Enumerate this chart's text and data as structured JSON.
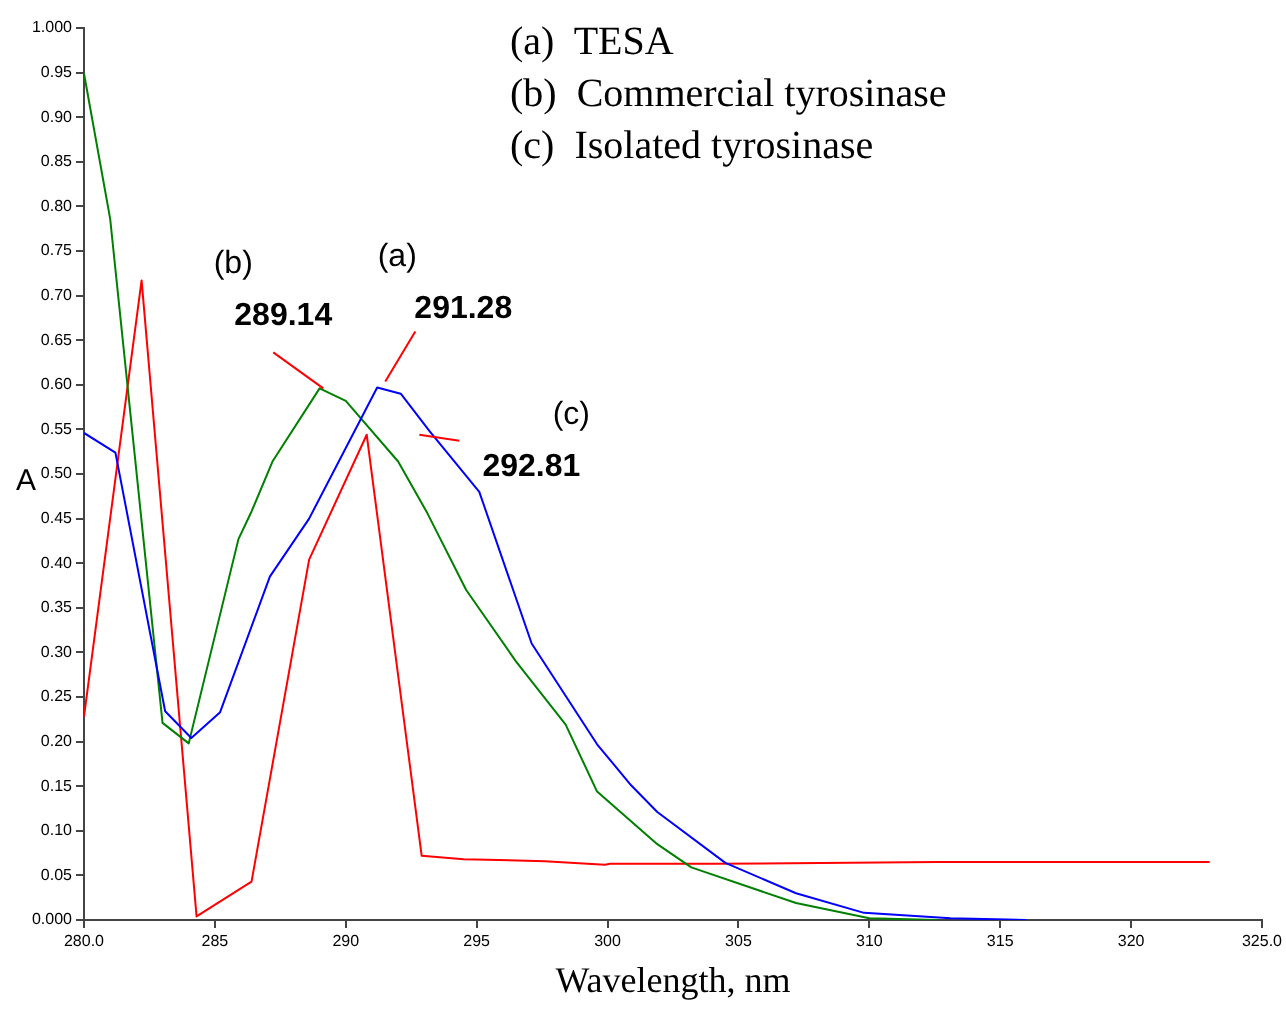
{
  "chart_data": {
    "type": "line",
    "xlabel": "Wavelength, nm",
    "ylabel": "A",
    "xlim": [
      280,
      325
    ],
    "ylim": [
      0,
      1
    ],
    "xticks": [
      {
        "value": 280,
        "label": "280.0"
      },
      285,
      290,
      295,
      300,
      305,
      310,
      315,
      320,
      {
        "value": 325,
        "label": "325.0"
      }
    ],
    "yticks": [
      {
        "value": 0,
        "label": "0.000"
      },
      0.05,
      {
        "value": 0.1,
        "label": "0.10"
      },
      0.15,
      {
        "value": 0.2,
        "label": "0.20"
      },
      0.25,
      {
        "value": 0.3,
        "label": "0.30"
      },
      0.35,
      {
        "value": 0.4,
        "label": "0.40"
      },
      0.45,
      {
        "value": 0.5,
        "label": "0.50"
      },
      0.55,
      {
        "value": 0.6,
        "label": "0.60"
      },
      0.65,
      {
        "value": 0.7,
        "label": "0.70"
      },
      0.75,
      {
        "value": 0.8,
        "label": "0.80"
      },
      0.85,
      {
        "value": 0.9,
        "label": "0.90"
      },
      0.95,
      {
        "value": 1,
        "label": "1.000"
      }
    ],
    "marker": "none",
    "line_style": "solid",
    "legend": false,
    "series": [
      {
        "color": "#0000ff",
        "x": [
          280,
          281.2,
          283.1,
          284.1,
          285.2,
          287.1,
          288.6,
          291.2,
          292.1,
          293.2,
          295.1,
          297.1,
          299.6,
          300.9,
          301.9,
          304.5,
          307.2,
          309.8,
          313.1,
          316
        ],
        "values": [
          0.546,
          0.524,
          0.234,
          0.204,
          0.233,
          0.385,
          0.45,
          0.597,
          0.59,
          0.548,
          0.48,
          0.31,
          0.197,
          0.151,
          0.121,
          0.064,
          0.03,
          0.008,
          0.002,
          0
        ]
      },
      {
        "color": "#008000",
        "x": [
          280,
          281,
          283,
          284,
          285.9,
          286.4,
          287.2,
          289,
          290,
          292,
          293.1,
          294.6,
          296.5,
          298.4,
          299.6,
          301.9,
          303.2,
          307.2,
          310,
          312.6
        ],
        "values": [
          0.949,
          0.786,
          0.221,
          0.198,
          0.427,
          0.458,
          0.514,
          0.596,
          0.582,
          0.514,
          0.457,
          0.37,
          0.29,
          0.219,
          0.144,
          0.085,
          0.059,
          0.019,
          0.002,
          0
        ]
      },
      {
        "color": "#ff0000",
        "x": [
          280,
          282.2,
          284.3,
          286.4,
          288.6,
          290.8,
          292.9,
          294.5,
          297.6,
          299.9,
          300.1,
          304.1,
          312.6,
          323
        ],
        "values": [
          0.228,
          0.717,
          0.004,
          0.043,
          0.404,
          0.544,
          0.072,
          0.068,
          0.066,
          0.062,
          0.063,
          0.063,
          0.065,
          0.065
        ]
      }
    ],
    "annotations": [
      "(a)  TESA",
      "(b)  Commercial tyrosinase",
      "(c)  Isolated tyrosinase",
      {
        "text": "(b)\n289.14",
        "x": 289.14,
        "y": 0.596
      },
      {
        "text": "(a)\n291.28",
        "x": 291.28,
        "y": 0.597
      },
      {
        "text": "(c)\n292.81",
        "x": 292.81,
        "y": 0.544
      }
    ]
  }
}
